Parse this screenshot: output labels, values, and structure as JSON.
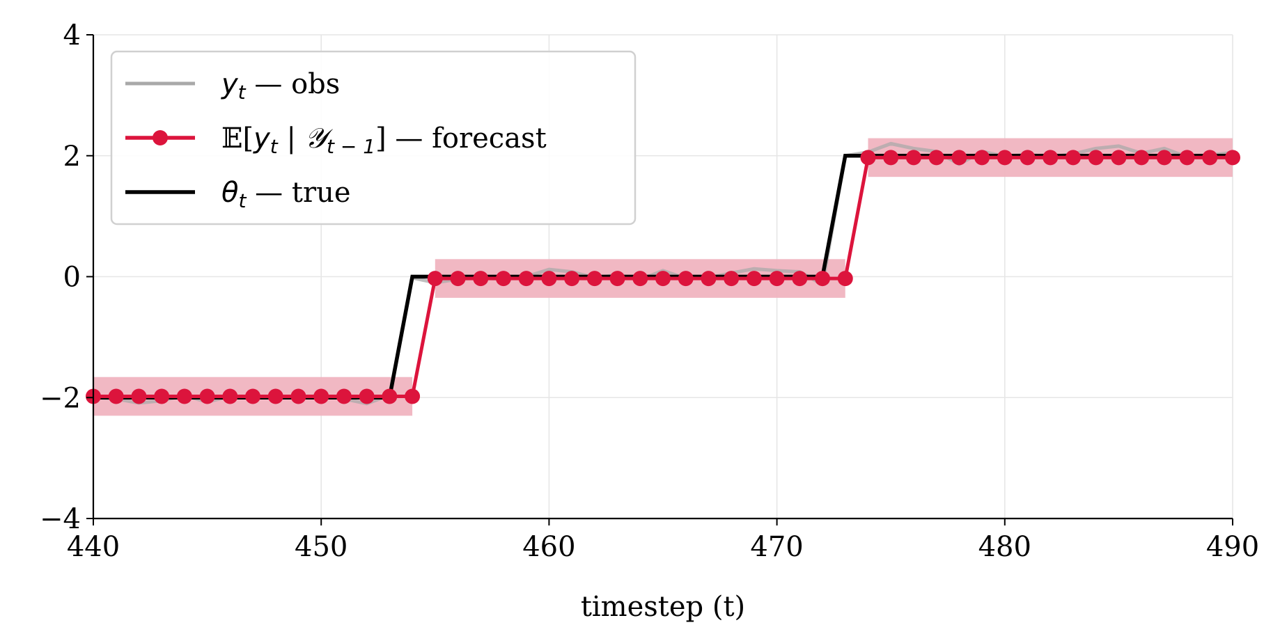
{
  "chart_data": {
    "type": "line",
    "xlabel": "timestep (t)",
    "xlim": [
      440,
      490
    ],
    "ylim": [
      -4,
      4
    ],
    "xticks": [
      440,
      450,
      460,
      470,
      480,
      490
    ],
    "yticks": [
      -4,
      -2,
      0,
      2,
      4
    ],
    "ytick_labels": [
      "−4",
      "−2",
      "0",
      "2",
      "4"
    ],
    "grid": true,
    "legend_position": "top-left",
    "colors": {
      "obs": "#a9a9a9",
      "forecast": "#dc143c",
      "band": "#f0b4c0",
      "true": "#000000"
    },
    "series": [
      {
        "name": "y_t — obs",
        "legend": {
          "sym": "y",
          "sub": "t",
          "rest": " — obs"
        },
        "x": [
          440,
          441,
          442,
          443,
          444,
          445,
          446,
          447,
          448,
          449,
          450,
          451,
          452,
          453,
          454,
          455,
          456,
          457,
          458,
          459,
          460,
          461,
          462,
          463,
          464,
          465,
          466,
          467,
          468,
          469,
          470,
          471,
          472,
          473,
          474,
          475,
          476,
          477,
          478,
          479,
          480,
          481,
          482,
          483,
          484,
          485,
          486,
          487,
          488,
          489,
          490
        ],
        "y": [
          -2.0,
          -2.02,
          -2.09,
          -2.05,
          -1.97,
          -2.07,
          -1.98,
          -2.0,
          -1.99,
          -2.01,
          -1.96,
          -2.02,
          -2.1,
          -1.96,
          -0.02,
          -0.1,
          -0.04,
          -0.02,
          -0.04,
          0.0,
          0.12,
          0.08,
          -0.02,
          0.03,
          -0.05,
          0.1,
          -0.03,
          -0.02,
          0.06,
          0.13,
          0.1,
          0.08,
          -0.13,
          2.0,
          2.06,
          2.2,
          2.12,
          2.07,
          1.86,
          2.07,
          1.99,
          2.02,
          1.98,
          2.03,
          2.12,
          2.16,
          2.04,
          2.12,
          1.98,
          2.01,
          2.05
        ]
      },
      {
        "name": "E[y_t | Y_t−1] — forecast",
        "legend": {
          "pre": "𝔼[",
          "sym": "y",
          "sub": "t",
          "bar": " | ",
          "sym2": "𝒴",
          "sub2": "t − 1",
          "rest": "] — forecast"
        },
        "x": [
          440,
          441,
          442,
          443,
          444,
          445,
          446,
          447,
          448,
          449,
          450,
          451,
          452,
          453,
          454,
          455,
          456,
          457,
          458,
          459,
          460,
          461,
          462,
          463,
          464,
          465,
          466,
          467,
          468,
          469,
          470,
          471,
          472,
          473,
          474,
          475,
          476,
          477,
          478,
          479,
          480,
          481,
          482,
          483,
          484,
          485,
          486,
          487,
          488,
          489,
          490
        ],
        "y": [
          -1.98,
          -1.98,
          -1.98,
          -1.98,
          -1.98,
          -1.98,
          -1.98,
          -1.98,
          -1.98,
          -1.98,
          -1.98,
          -1.98,
          -1.98,
          -1.98,
          -1.98,
          -0.03,
          -0.03,
          -0.03,
          -0.03,
          -0.03,
          -0.03,
          -0.03,
          -0.03,
          -0.03,
          -0.03,
          -0.03,
          -0.03,
          -0.03,
          -0.03,
          -0.03,
          -0.03,
          -0.03,
          -0.03,
          -0.03,
          1.97,
          1.97,
          1.97,
          1.97,
          1.97,
          1.97,
          1.97,
          1.97,
          1.97,
          1.97,
          1.97,
          1.97,
          1.97,
          1.97,
          1.97,
          1.97,
          1.97
        ],
        "band_half_width": 0.32
      },
      {
        "name": "θ_t — true",
        "legend": {
          "sym": "θ",
          "sub": "t",
          "rest": " — true"
        },
        "x": [
          440,
          453,
          454,
          472,
          473,
          490
        ],
        "y": [
          -2,
          -2,
          0,
          0,
          2,
          2
        ]
      }
    ]
  }
}
